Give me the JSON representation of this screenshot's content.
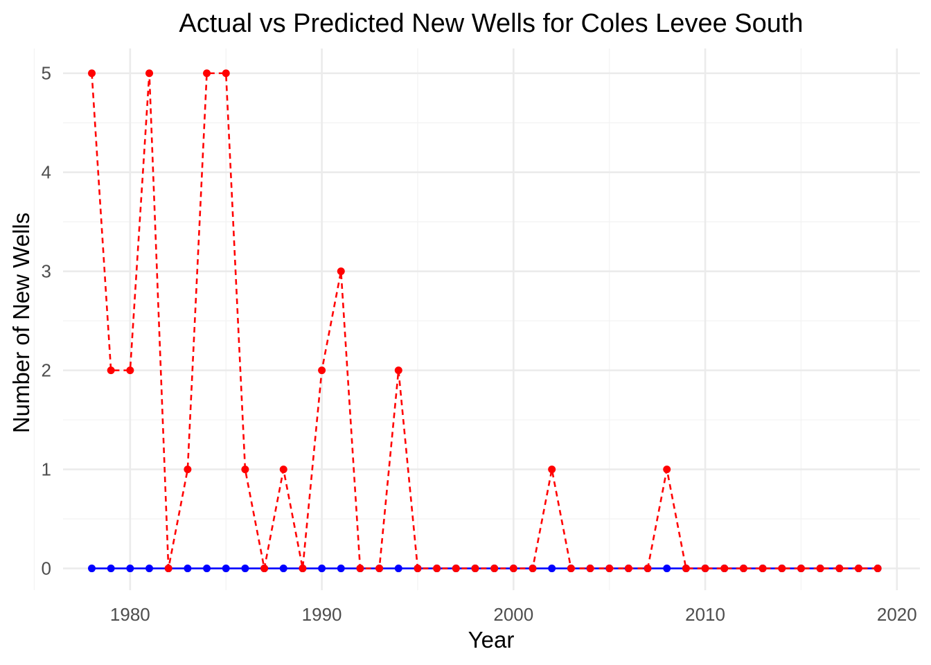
{
  "chart_data": {
    "type": "line",
    "title": "Actual vs Predicted New Wells for Coles Levee  South",
    "xlabel": "Year",
    "ylabel": "Number of New Wells",
    "xlim": [
      1976.5,
      2021.2
    ],
    "ylim": [
      -0.22,
      5.25
    ],
    "x_ticks": [
      1980,
      1990,
      2000,
      2010,
      2020
    ],
    "y_ticks": [
      0,
      1,
      2,
      3,
      4,
      5
    ],
    "grid": true,
    "legend": "none",
    "x": [
      1978,
      1979,
      1980,
      1981,
      1982,
      1983,
      1984,
      1985,
      1986,
      1987,
      1988,
      1989,
      1990,
      1991,
      1992,
      1993,
      1994,
      1995,
      1996,
      1997,
      1998,
      1999,
      2000,
      2001,
      2002,
      2003,
      2004,
      2005,
      2006,
      2007,
      2008,
      2009,
      2010,
      2011,
      2012,
      2013,
      2014,
      2015,
      2016,
      2017,
      2018,
      2019
    ],
    "series": [
      {
        "key": "blue",
        "color": "#0000ff",
        "line": "solid",
        "values": [
          0,
          0,
          0,
          0,
          0,
          0,
          0,
          0,
          0,
          0,
          0,
          0,
          0,
          0,
          0,
          0,
          0,
          0,
          0,
          0,
          0,
          0,
          0,
          0,
          0,
          0,
          0,
          0,
          0,
          0,
          0,
          0,
          0,
          0,
          0,
          0,
          0,
          0,
          0,
          0,
          0,
          0
        ]
      },
      {
        "key": "red",
        "color": "#ff0000",
        "line": "dashed",
        "values": [
          5,
          2,
          2,
          5,
          0,
          1,
          5,
          5,
          1,
          0,
          1,
          0,
          2,
          3,
          0,
          0,
          2,
          0,
          0,
          0,
          0,
          0,
          0,
          0,
          1,
          0,
          0,
          0,
          0,
          0,
          1,
          0,
          0,
          0,
          0,
          0,
          0,
          0,
          0,
          0,
          0,
          0
        ]
      }
    ]
  }
}
